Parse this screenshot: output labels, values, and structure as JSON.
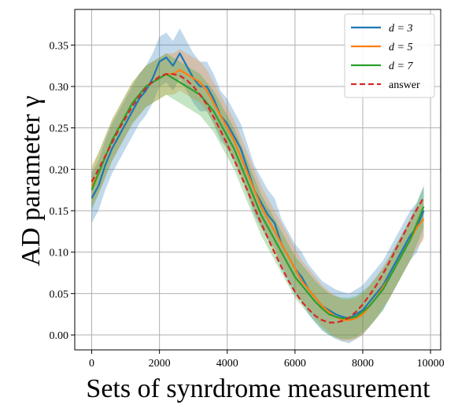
{
  "chart_data": {
    "type": "line",
    "xlabel": "Sets of synrdrome measurement",
    "ylabel": "AD parameter γ",
    "xlim": [
      -500,
      10300
    ],
    "ylim": [
      -0.018,
      0.393
    ],
    "xticks": [
      0,
      2000,
      4000,
      6000,
      8000,
      10000
    ],
    "yticks": [
      0.0,
      0.05,
      0.1,
      0.15,
      0.2,
      0.25,
      0.3,
      0.35
    ],
    "xtick_labels": [
      "0",
      "2000",
      "4000",
      "6000",
      "8000",
      "10000"
    ],
    "ytick_labels": [
      "0.00",
      "0.05",
      "0.10",
      "0.15",
      "0.20",
      "0.25",
      "0.30",
      "0.35"
    ],
    "grid": true,
    "legend_position": "top-right",
    "legend": [
      "d = 3",
      "d = 5",
      "d = 7",
      "answer"
    ],
    "series": [
      {
        "name": "d = 3",
        "color": "#1f77b4",
        "x": [
          0,
          200,
          400,
          600,
          800,
          1000,
          1200,
          1400,
          1600,
          1800,
          2000,
          2200,
          2400,
          2600,
          2800,
          3000,
          3200,
          3400,
          3600,
          3800,
          4000,
          4200,
          4400,
          4600,
          4800,
          5000,
          5200,
          5400,
          5600,
          5800,
          6000,
          6200,
          6400,
          6600,
          6800,
          7000,
          7200,
          7400,
          7600,
          7800,
          8000,
          8200,
          8400,
          8600,
          8800,
          9000,
          9200,
          9400,
          9600,
          9800
        ],
        "y": [
          0.165,
          0.18,
          0.205,
          0.225,
          0.24,
          0.255,
          0.27,
          0.285,
          0.295,
          0.31,
          0.33,
          0.335,
          0.325,
          0.34,
          0.325,
          0.31,
          0.3,
          0.3,
          0.285,
          0.265,
          0.255,
          0.24,
          0.225,
          0.2,
          0.175,
          0.16,
          0.145,
          0.135,
          0.11,
          0.095,
          0.08,
          0.07,
          0.055,
          0.045,
          0.035,
          0.03,
          0.025,
          0.022,
          0.02,
          0.025,
          0.03,
          0.04,
          0.05,
          0.06,
          0.075,
          0.09,
          0.105,
          0.12,
          0.13,
          0.15
        ],
        "band": 0.03
      },
      {
        "name": "d = 5",
        "color": "#ff7f0e",
        "x": [
          0,
          200,
          400,
          600,
          800,
          1000,
          1200,
          1400,
          1600,
          1800,
          2000,
          2200,
          2400,
          2600,
          2800,
          3000,
          3200,
          3400,
          3600,
          3800,
          4000,
          4200,
          4400,
          4600,
          4800,
          5000,
          5200,
          5400,
          5600,
          5800,
          6000,
          6200,
          6400,
          6600,
          6800,
          7000,
          7200,
          7400,
          7600,
          7800,
          8000,
          8200,
          8400,
          8600,
          8800,
          9000,
          9200,
          9400,
          9600,
          9800
        ],
        "y": [
          0.18,
          0.195,
          0.215,
          0.235,
          0.25,
          0.265,
          0.28,
          0.29,
          0.3,
          0.305,
          0.31,
          0.315,
          0.315,
          0.32,
          0.315,
          0.31,
          0.305,
          0.295,
          0.28,
          0.265,
          0.25,
          0.235,
          0.215,
          0.195,
          0.175,
          0.155,
          0.14,
          0.125,
          0.11,
          0.095,
          0.08,
          0.065,
          0.055,
          0.045,
          0.035,
          0.028,
          0.022,
          0.018,
          0.018,
          0.02,
          0.025,
          0.035,
          0.045,
          0.058,
          0.07,
          0.085,
          0.1,
          0.115,
          0.13,
          0.14
        ],
        "band": 0.025
      },
      {
        "name": "d = 7",
        "color": "#2ca02c",
        "x": [
          0,
          200,
          400,
          600,
          800,
          1000,
          1200,
          1400,
          1600,
          1800,
          2000,
          2200,
          2400,
          2600,
          2800,
          3000,
          3200,
          3400,
          3600,
          3800,
          4000,
          4200,
          4400,
          4600,
          4800,
          5000,
          5200,
          5400,
          5600,
          5800,
          6000,
          6200,
          6400,
          6600,
          6800,
          7000,
          7200,
          7400,
          7600,
          7800,
          8000,
          8200,
          8400,
          8600,
          8800,
          9000,
          9200,
          9400,
          9600,
          9800
        ],
        "y": [
          0.175,
          0.195,
          0.215,
          0.235,
          0.25,
          0.265,
          0.28,
          0.29,
          0.3,
          0.305,
          0.31,
          0.315,
          0.31,
          0.305,
          0.3,
          0.295,
          0.29,
          0.28,
          0.27,
          0.255,
          0.24,
          0.225,
          0.205,
          0.185,
          0.165,
          0.145,
          0.13,
          0.115,
          0.1,
          0.085,
          0.07,
          0.06,
          0.05,
          0.04,
          0.032,
          0.025,
          0.022,
          0.02,
          0.02,
          0.022,
          0.028,
          0.035,
          0.045,
          0.055,
          0.07,
          0.085,
          0.1,
          0.115,
          0.135,
          0.155
        ],
        "band": 0.025
      },
      {
        "name": "answer",
        "color": "#d62728",
        "dashed": true,
        "x": [
          0,
          200,
          400,
          600,
          800,
          1000,
          1200,
          1400,
          1600,
          1800,
          2000,
          2200,
          2400,
          2600,
          2800,
          3000,
          3200,
          3400,
          3600,
          3800,
          4000,
          4200,
          4400,
          4600,
          4800,
          5000,
          5200,
          5400,
          5600,
          5800,
          6000,
          6200,
          6400,
          6600,
          6800,
          7000,
          7200,
          7400,
          7600,
          7800,
          8000,
          8200,
          8400,
          8600,
          8800,
          9000,
          9200,
          9400,
          9600,
          9800
        ],
        "y": [
          0.185,
          0.2,
          0.216,
          0.232,
          0.248,
          0.262,
          0.276,
          0.288,
          0.298,
          0.306,
          0.312,
          0.315,
          0.315,
          0.313,
          0.308,
          0.3,
          0.29,
          0.278,
          0.263,
          0.247,
          0.23,
          0.212,
          0.193,
          0.174,
          0.154,
          0.135,
          0.117,
          0.099,
          0.082,
          0.066,
          0.052,
          0.04,
          0.031,
          0.023,
          0.018,
          0.015,
          0.015,
          0.017,
          0.021,
          0.028,
          0.037,
          0.048,
          0.06,
          0.074,
          0.089,
          0.105,
          0.121,
          0.137,
          0.152,
          0.166
        ]
      }
    ]
  }
}
